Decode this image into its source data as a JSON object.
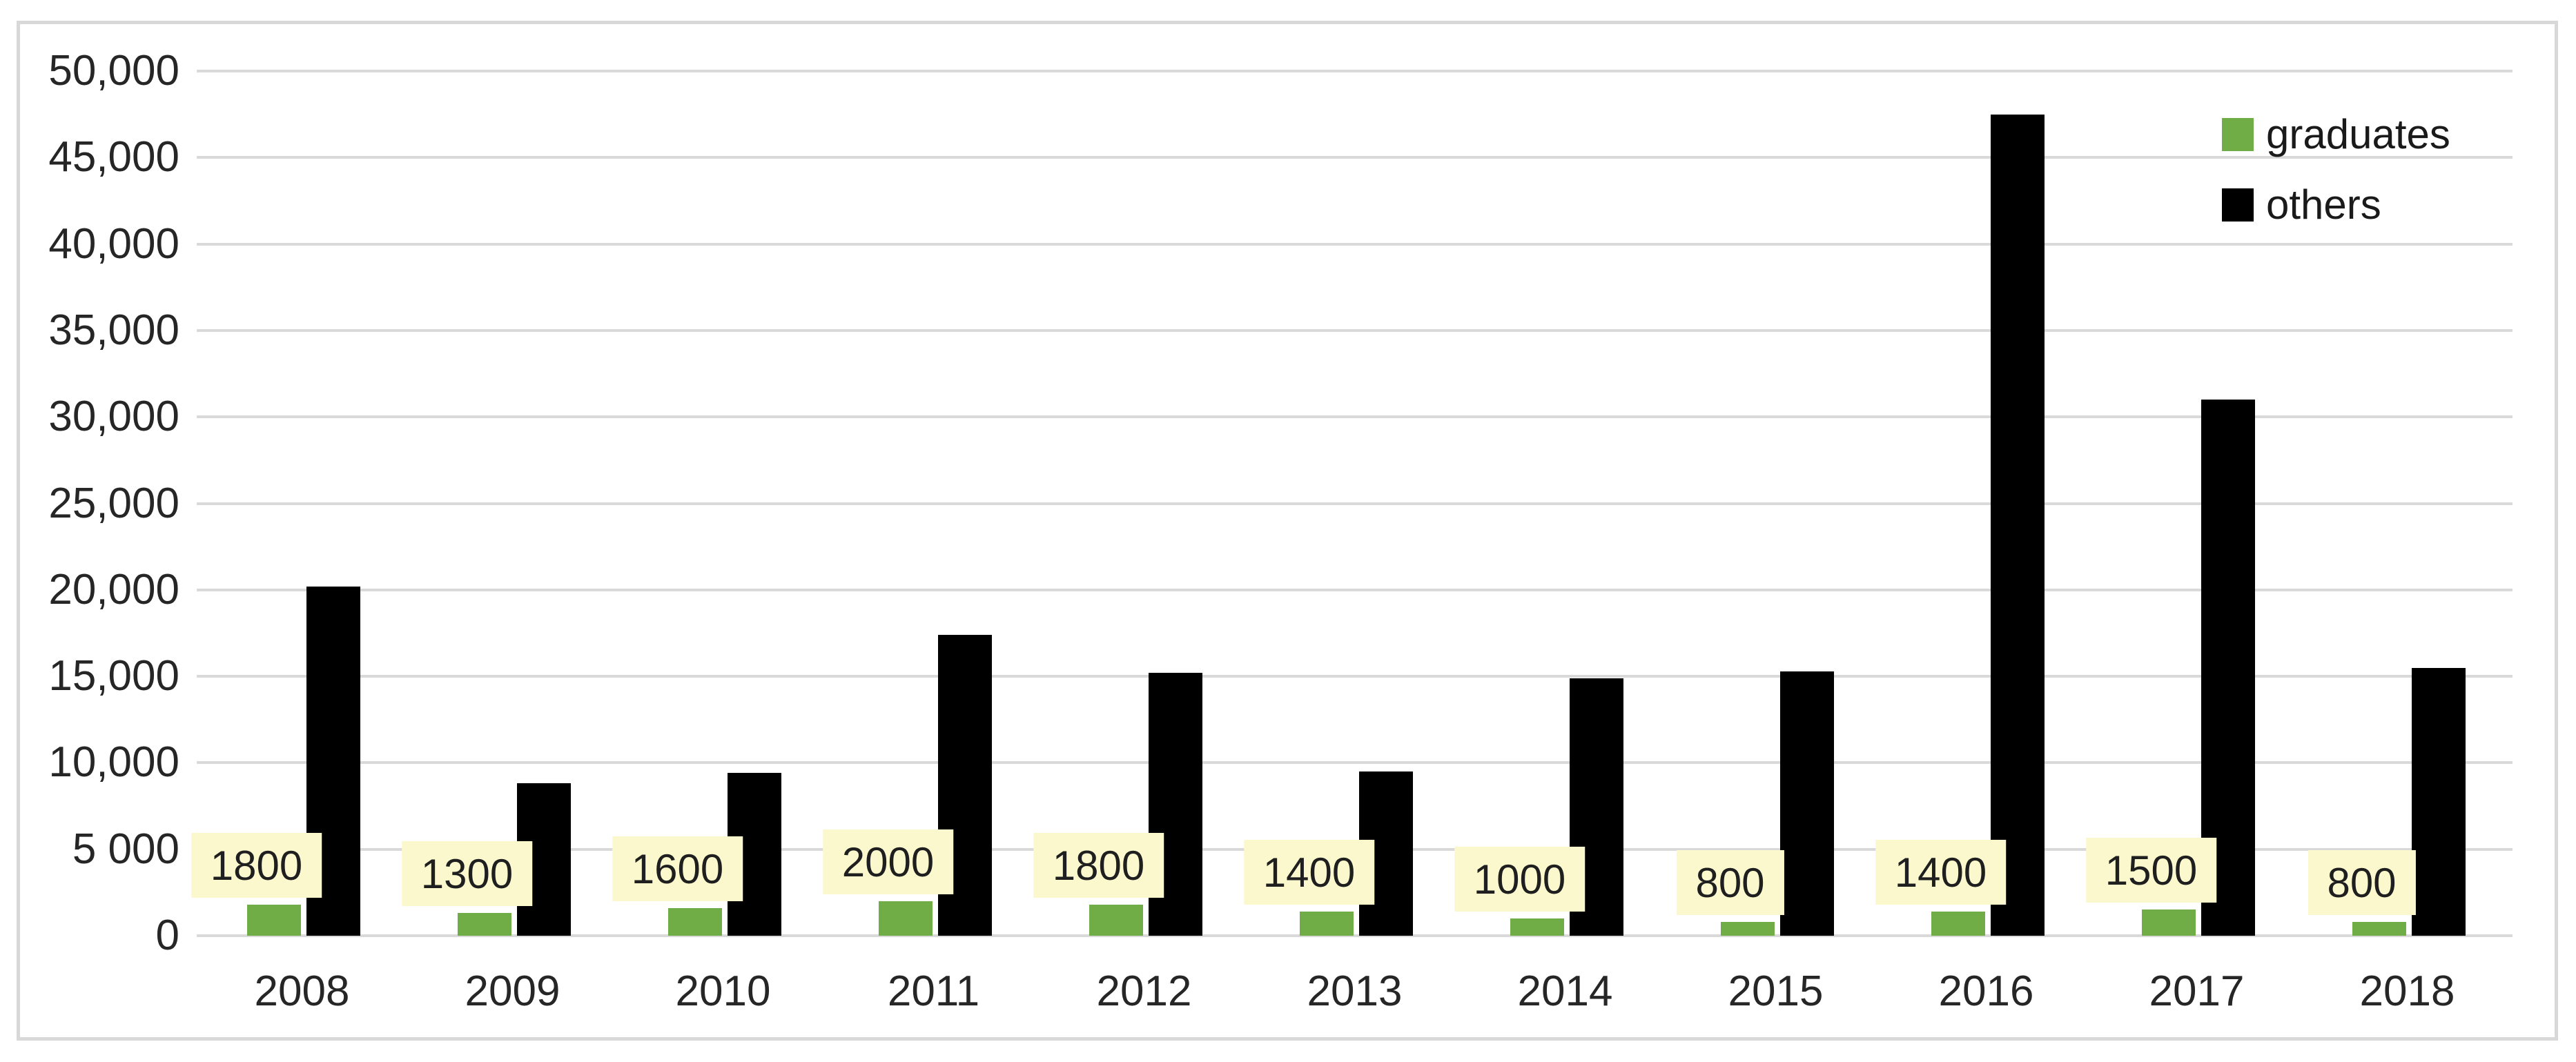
{
  "chart_data": {
    "type": "bar",
    "title": "",
    "categories": [
      "2008",
      "2009",
      "2010",
      "2011",
      "2012",
      "2013",
      "2014",
      "2015",
      "2016",
      "2017",
      "2018"
    ],
    "series": [
      {
        "name": "graduates",
        "color": "#70AD47",
        "values": [
          1800,
          1300,
          1600,
          2000,
          1800,
          1400,
          1000,
          800,
          1400,
          1500,
          800
        ],
        "data_labels_shown": true
      },
      {
        "name": "others",
        "color": "#000000",
        "values": [
          20200,
          8800,
          9400,
          17400,
          15200,
          9500,
          14900,
          15300,
          47500,
          31000,
          15500
        ],
        "data_labels_shown": false
      }
    ],
    "xlabel": "",
    "ylabel": "",
    "ylim": [
      0,
      50000
    ],
    "y_tick_interval": 5000,
    "y_tick_labels_top_to_bottom": [
      "50,000",
      "45,000",
      "40,000",
      "35,000",
      "30,000",
      "25,000",
      "20,000",
      "15,000",
      "10,000",
      "5 000",
      "0"
    ],
    "grid": true,
    "legend_position": "top-right",
    "data_label_values": [
      "1800",
      "1300",
      "1600",
      "2000",
      "1800",
      "1400",
      "1000",
      "800",
      "1400",
      "1500",
      "800"
    ],
    "data_label_background": "#FBF8CE",
    "gridline_color": "#D9D9D9",
    "frame_border_color": "#D8D8D8"
  }
}
